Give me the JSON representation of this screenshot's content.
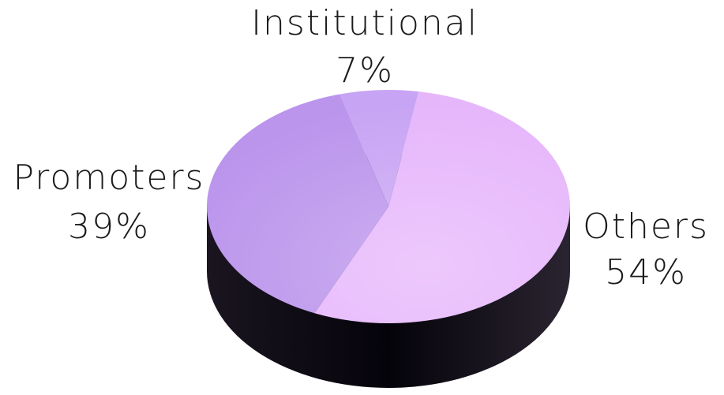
{
  "chart_data": {
    "type": "pie",
    "categories": [
      "Institutional",
      "Others",
      "Promoters"
    ],
    "values": [
      7,
      54,
      39
    ],
    "value_labels": [
      "7%",
      "54%",
      "39%"
    ],
    "colors": [
      "#c8a4f4",
      "#e6b6fb",
      "#bb94ec"
    ]
  }
}
